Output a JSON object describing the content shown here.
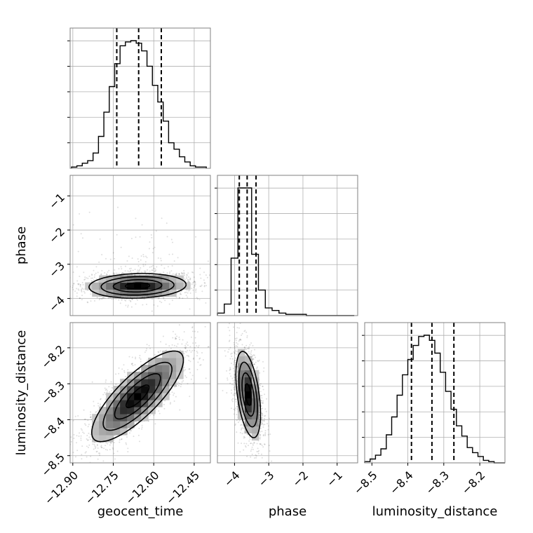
{
  "chart_data": {
    "type": "corner",
    "grid": true,
    "parameters": [
      "geocent_time",
      "phase",
      "luminosity_distance"
    ],
    "axis_labels": {
      "x": [
        "geocent_time",
        "phase",
        "luminosity_distance"
      ],
      "y": [
        "phase",
        "luminosity_distance"
      ]
    },
    "ranges": {
      "geocent_time": [
        -12.91,
        -12.39
      ],
      "phase": [
        -4.5,
        -0.4
      ],
      "luminosity_distance": [
        -8.52,
        -8.13
      ]
    },
    "ticks": {
      "geocent_time": {
        "values": [
          -12.9,
          -12.75,
          -12.6,
          -12.45
        ],
        "labels": [
          "−12.90",
          "−12.75",
          "−12.60",
          "−12.45"
        ]
      },
      "phase": {
        "values": [
          -4,
          -3,
          -2,
          -1
        ],
        "labels": [
          "−4",
          "−3",
          "−2",
          "−1"
        ]
      },
      "luminosity_distance": {
        "values": [
          -8.5,
          -8.4,
          -8.3,
          -8.2
        ],
        "labels": [
          "−8.5",
          "−8.4",
          "−8.3",
          "−8.2"
        ]
      }
    },
    "marginals": {
      "geocent_time": {
        "bins": [
          -12.905,
          -12.885,
          -12.865,
          -12.845,
          -12.825,
          -12.805,
          -12.785,
          -12.765,
          -12.745,
          -12.725,
          -12.705,
          -12.685,
          -12.665,
          -12.645,
          -12.625,
          -12.605,
          -12.585,
          -12.565,
          -12.545,
          -12.525,
          -12.505,
          -12.485,
          -12.465,
          -12.445,
          -12.425,
          -12.405
        ],
        "counts": [
          1,
          2,
          4,
          6,
          12,
          25,
          44,
          64,
          82,
          96,
          99,
          100,
          98,
          92,
          80,
          65,
          52,
          37,
          20,
          15,
          9,
          5,
          2,
          1,
          1
        ],
        "quantiles": [
          -12.737,
          -12.656,
          -12.572
        ]
      },
      "phase": {
        "bins": [
          -4.5,
          -4.3,
          -4.1,
          -3.9,
          -3.7,
          -3.5,
          -3.3,
          -3.1,
          -2.9,
          -2.7,
          -2.5,
          -2.3,
          -2.1,
          -1.9,
          -1.7,
          -1.5,
          -1.3,
          -1.1,
          -0.9,
          -0.7,
          -0.5
        ],
        "counts": [
          2,
          9,
          45,
          100,
          100,
          48,
          20,
          6,
          4,
          2,
          1,
          1,
          1,
          0,
          0,
          0,
          0,
          0,
          0,
          0
        ],
        "quantiles": [
          -3.86,
          -3.63,
          -3.37
        ]
      },
      "luminosity_distance": {
        "bins": [
          -8.52,
          -8.505,
          -8.49,
          -8.475,
          -8.46,
          -8.445,
          -8.43,
          -8.415,
          -8.4,
          -8.385,
          -8.37,
          -8.355,
          -8.34,
          -8.325,
          -8.31,
          -8.295,
          -8.28,
          -8.265,
          -8.25,
          -8.235,
          -8.22,
          -8.205,
          -8.19,
          -8.175,
          -8.16,
          -8.145,
          -8.13
        ],
        "counts": [
          1,
          3,
          6,
          11,
          22,
          36,
          53,
          69,
          81,
          92,
          99,
          100,
          96,
          86,
          71,
          56,
          42,
          29,
          21,
          12,
          8,
          5,
          2,
          1,
          0,
          0
        ],
        "quantiles": [
          -8.39,
          -8.333,
          -8.272
        ]
      }
    },
    "joint": {
      "phase_vs_geocent_time": {
        "x": "geocent_time",
        "y": "phase",
        "center": [
          -12.66,
          -3.63
        ],
        "sd": [
          0.09,
          0.18
        ],
        "rho": 0.1
      },
      "luminosity_distance_vs_geocent_time": {
        "x": "geocent_time",
        "y": "luminosity_distance",
        "center": [
          -12.66,
          -8.335
        ],
        "sd": [
          0.085,
          0.063
        ],
        "rho": 0.8
      },
      "luminosity_distance_vs_phase": {
        "x": "phase",
        "y": "luminosity_distance",
        "center": [
          -3.6,
          -8.33
        ],
        "sd": [
          0.18,
          0.06
        ],
        "rho": -0.45
      }
    }
  }
}
